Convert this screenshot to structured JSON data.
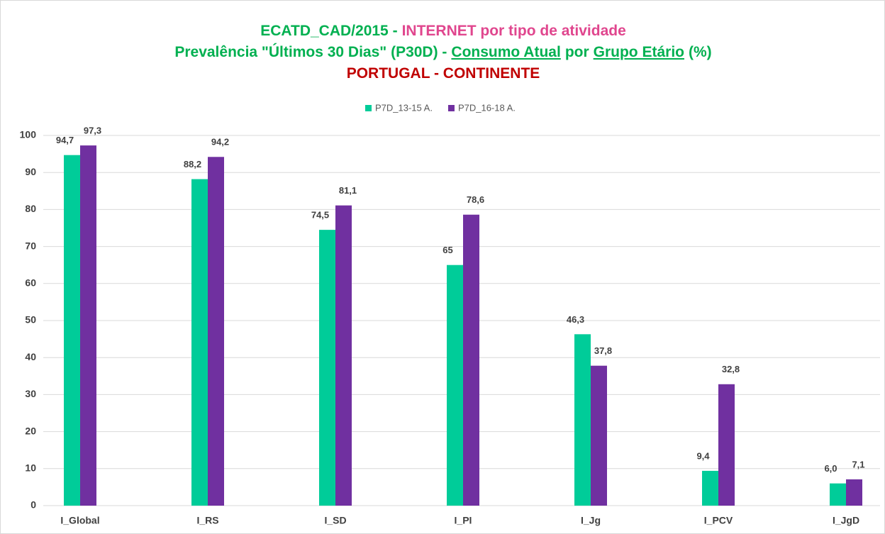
{
  "chart_data": {
    "type": "bar",
    "title_lines": [
      [
        {
          "text": "ECATD_CAD/2015 -",
          "color": "#00b050"
        },
        {
          "text": "INTERNET por tipo de atividade",
          "color": "#e0468e"
        }
      ],
      [
        {
          "text": "Prevalência \"Últimos 30 Dias\" (P30D) -",
          "color": "#00b050"
        },
        {
          "text": "Consumo Atual",
          "color": "#00b050",
          "underline": true
        },
        {
          "text": "por",
          "color": "#00b050"
        },
        {
          "text": "Grupo Etário",
          "color": "#00b050",
          "underline": true
        },
        {
          "text": "(%)",
          "color": "#00b050"
        }
      ],
      [
        {
          "text": "PORTUGAL - CONTINENTE",
          "color": "#c00000"
        }
      ]
    ],
    "categories": [
      "I_Global",
      "I_RS",
      "I_SD",
      "I_PI",
      "I_Jg",
      "I_PCV",
      "I_JgD"
    ],
    "series": [
      {
        "name": "P7D_13-15 A.",
        "color": "#00cc99",
        "values": [
          94.7,
          88.2,
          74.5,
          65,
          46.3,
          9.4,
          6.0
        ],
        "value_labels": [
          "94,7",
          "88,2",
          "74,5",
          "65",
          "46,3",
          "9,4",
          "6,0"
        ]
      },
      {
        "name": "P7D_16-18 A.",
        "color": "#7030a0",
        "values": [
          97.3,
          94.2,
          81.1,
          78.6,
          37.8,
          32.8,
          7.1
        ],
        "value_labels": [
          "97,3",
          "94,2",
          "81,1",
          "78,6",
          "37,8",
          "32,8",
          "7,1"
        ]
      }
    ],
    "ylim": [
      0,
      100
    ],
    "yticks": [
      0,
      10,
      20,
      30,
      40,
      50,
      60,
      70,
      80,
      90,
      100
    ],
    "grid": true,
    "legend": "top"
  }
}
